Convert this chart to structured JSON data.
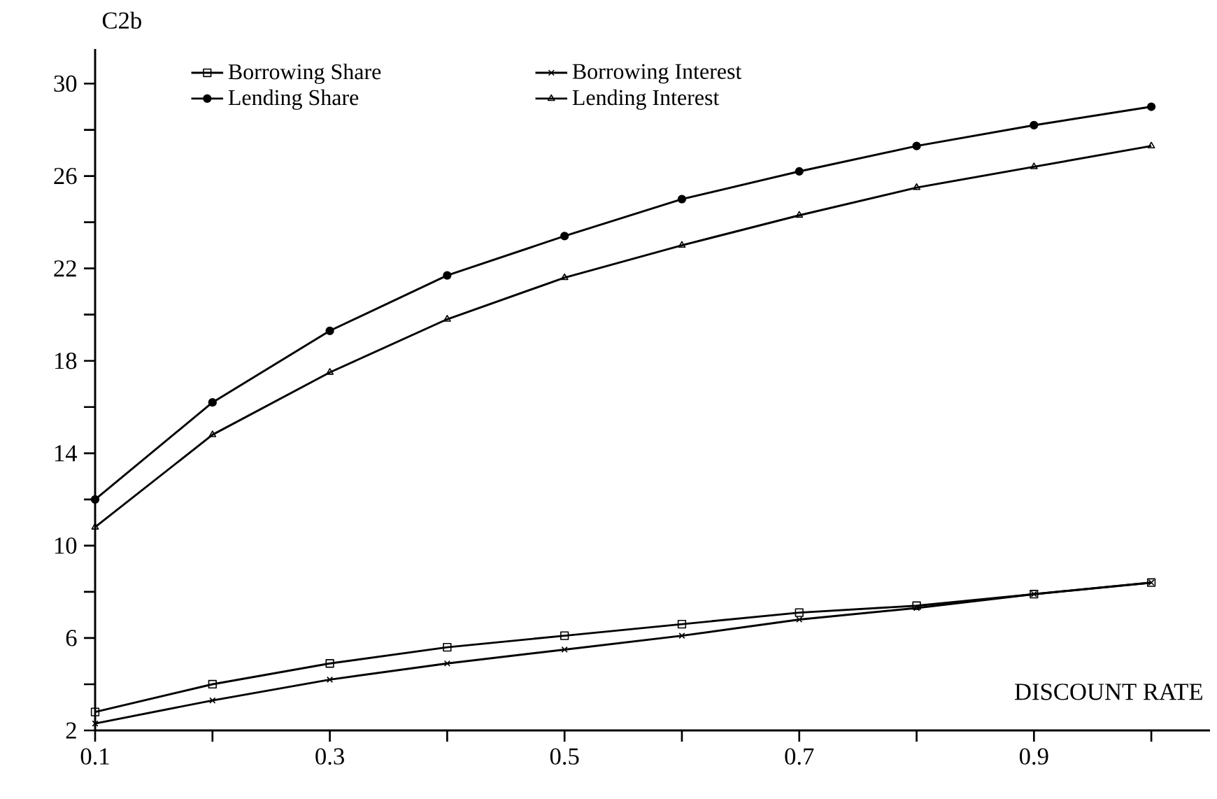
{
  "chart_data": {
    "type": "line",
    "xlabel": "DISCOUNT RATE",
    "ylabel": "C2b",
    "x": [
      0.1,
      0.2,
      0.3,
      0.4,
      0.5,
      0.6,
      0.7,
      0.8,
      0.9,
      1.0
    ],
    "series": [
      {
        "name": "Borrowing Share",
        "color": "#000000",
        "marker": "square",
        "values": [
          2.8,
          4.0,
          4.9,
          5.6,
          6.1,
          6.6,
          7.1,
          7.4,
          7.9,
          8.4
        ]
      },
      {
        "name": "Borrowing Interest",
        "color": "#000000",
        "marker": "cross",
        "values": [
          2.3,
          3.3,
          4.2,
          4.9,
          5.5,
          6.1,
          6.8,
          7.3,
          7.9,
          8.4
        ]
      },
      {
        "name": "Lending Share",
        "color": "#000000",
        "marker": "circle",
        "values": [
          12.0,
          16.2,
          19.3,
          21.7,
          23.4,
          25.0,
          26.2,
          27.3,
          28.2,
          29.0
        ]
      },
      {
        "name": "Lending Interest",
        "color": "#000000",
        "marker": "triangle",
        "values": [
          10.8,
          14.8,
          17.5,
          19.8,
          21.6,
          23.0,
          24.3,
          25.5,
          26.4,
          27.3
        ]
      }
    ],
    "xlim": [
      0.1,
      1.05
    ],
    "ylim": [
      2,
      31.5
    ],
    "xticks": [
      0.1,
      {
        "value": 0.2,
        "label": null
      },
      0.3,
      {
        "value": 0.4,
        "label": null
      },
      0.5,
      {
        "value": 0.6,
        "label": null
      },
      0.7,
      {
        "value": 0.8,
        "label": null
      },
      0.9,
      {
        "value": 1.0,
        "label": null
      }
    ],
    "yticks": [
      2,
      {
        "value": 4,
        "label": null
      },
      6,
      {
        "value": 8,
        "label": null
      },
      10,
      {
        "value": 12,
        "label": null
      },
      14,
      {
        "value": 16,
        "label": null
      },
      18,
      {
        "value": 20,
        "label": null
      },
      22,
      {
        "value": 24,
        "label": null
      },
      26,
      {
        "value": 28,
        "label": null
      },
      30
    ],
    "legend": "top",
    "line_style": "solid",
    "grid": false
  }
}
